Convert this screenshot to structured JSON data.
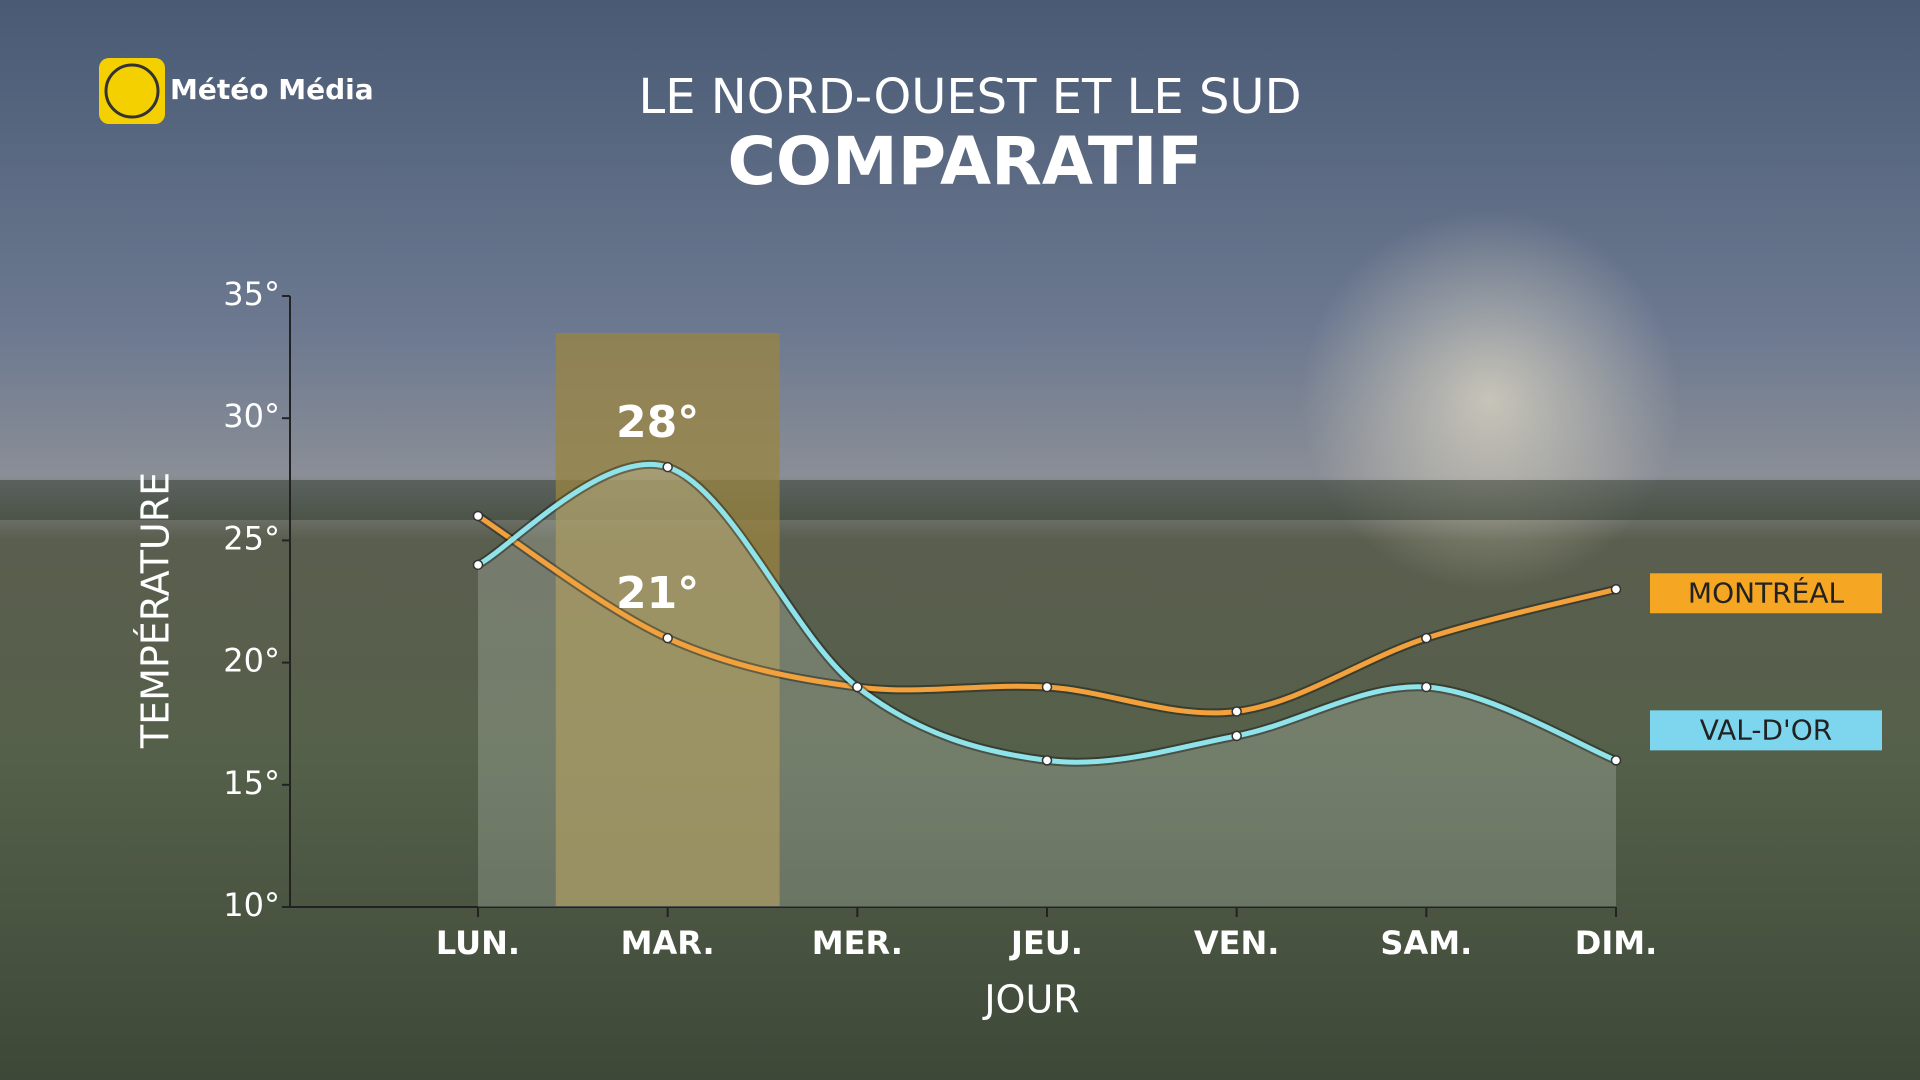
{
  "brand": "Météo Média",
  "chart_data": {
    "type": "line",
    "title": "LE NORD-OUEST ET LE SUD",
    "subtitle": "COMPARATIF",
    "y_label": "TEMPÉRATURE",
    "x_label": "JOUR",
    "categories": [
      "LUN.",
      "MAR.",
      "MER.",
      "JEU.",
      "VEN.",
      "SAM.",
      "DIM."
    ],
    "highlight": "MAR.",
    "series": [
      {
        "name": "MONTRÉAL",
        "color": "#f2a13c",
        "label_color": "#f5a623",
        "values": [
          26,
          21,
          19,
          19,
          18,
          21,
          23
        ],
        "value_labels": [
          null,
          "21°",
          null,
          null,
          null,
          null,
          null
        ]
      },
      {
        "name": "VAL-D'OR",
        "color": "#8fe3ea",
        "label_color": "#7dd6ee",
        "values": [
          24,
          28,
          19,
          16,
          17,
          19,
          16
        ],
        "value_labels": [
          null,
          "28°",
          null,
          null,
          null,
          null,
          null
        ]
      }
    ],
    "ylim": [
      10,
      35
    ],
    "yticks": [
      {
        "value": 10,
        "label": "10°"
      },
      {
        "value": 15,
        "label": "15°"
      },
      {
        "value": 20,
        "label": "20°"
      },
      {
        "value": 25,
        "label": "25°"
      },
      {
        "value": 30,
        "label": "30°"
      },
      {
        "value": 35,
        "label": "35°"
      }
    ]
  }
}
